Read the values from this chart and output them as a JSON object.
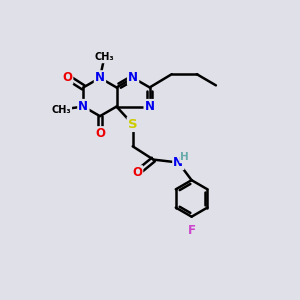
{
  "bg_color": "#e0e0e8",
  "atom_colors": {
    "C": "#000000",
    "N": "#0000ee",
    "O": "#ee0000",
    "S": "#cccc00",
    "F": "#cc44cc",
    "H": "#66aaaa"
  },
  "bond_color": "#000000",
  "bond_width": 1.8,
  "dbo": 0.08,
  "font_size": 8.5,
  "fig_size": [
    3.0,
    3.0
  ],
  "dpi": 100
}
